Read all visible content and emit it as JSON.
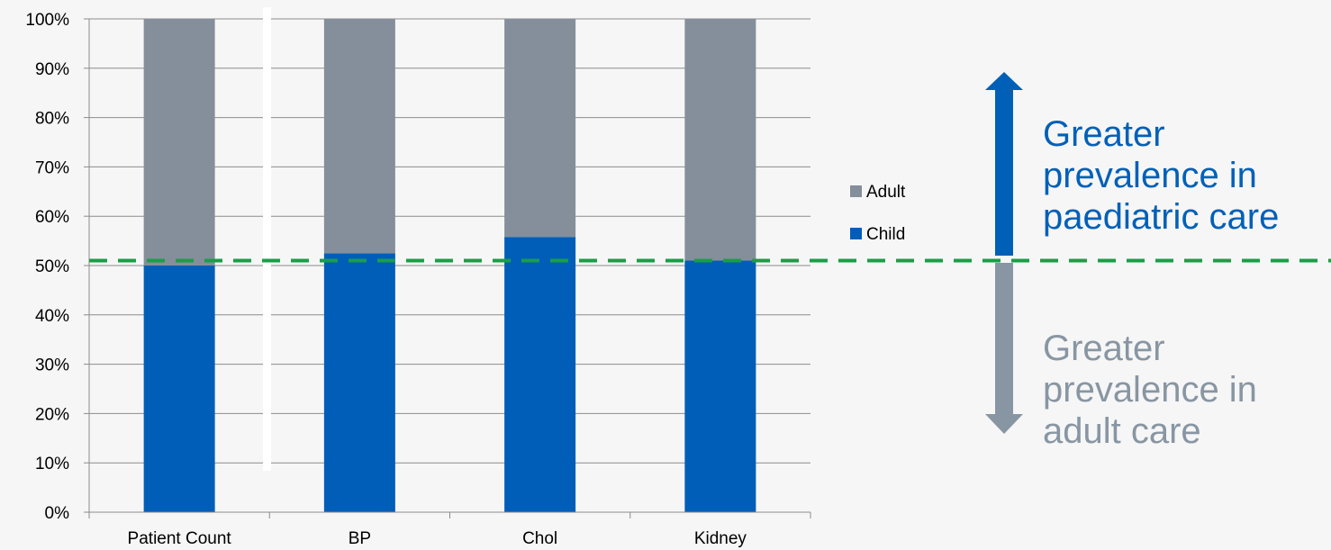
{
  "chart_data": {
    "type": "bar",
    "stacked": true,
    "categories": [
      "Patient Count",
      "BP",
      "Chol",
      "Kidney"
    ],
    "series": [
      {
        "name": "Child",
        "values": [
          50,
          52.5,
          55.8,
          51
        ],
        "color": "#005eb8"
      },
      {
        "name": "Adult",
        "values": [
          50,
          47.5,
          44.2,
          49
        ],
        "color": "#848f9b"
      }
    ],
    "ylim": [
      0,
      100
    ],
    "yticks": [
      "0%",
      "10%",
      "20%",
      "30%",
      "40%",
      "50%",
      "60%",
      "70%",
      "80%",
      "90%",
      "100%"
    ],
    "grid": true,
    "legend": "right",
    "reference_line": {
      "value": 51,
      "color": "#1a9e47",
      "style": "dashed"
    }
  },
  "annotations": {
    "up": {
      "lines": [
        "Greater",
        "prevalence in",
        "paediatric care"
      ],
      "color": "#0060b8"
    },
    "down": {
      "lines": [
        "Greater",
        "prevalence in",
        "adult care"
      ],
      "color": "#8896a3"
    }
  }
}
